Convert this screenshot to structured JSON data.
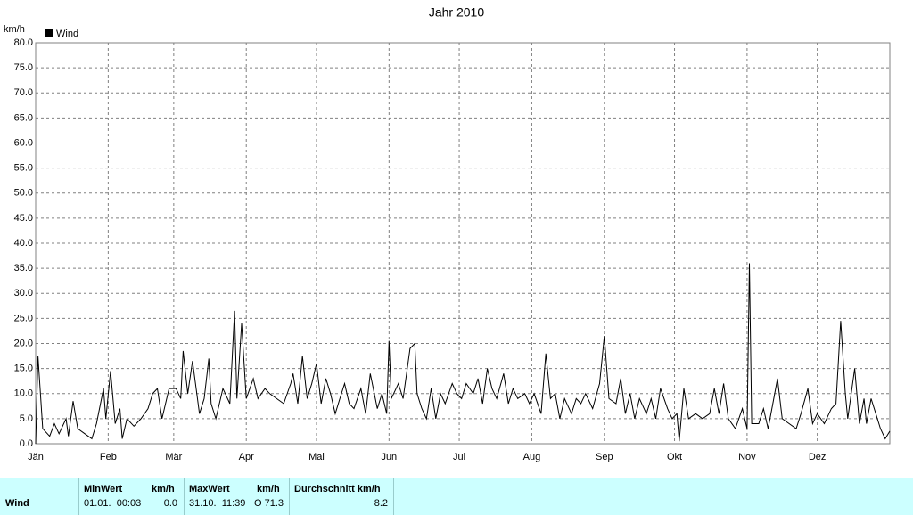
{
  "chart_data": {
    "type": "line",
    "title": "Jahr 2010",
    "y_label": "km/h",
    "x": [
      0,
      1,
      3,
      6,
      8,
      10,
      13,
      14,
      16,
      18,
      21,
      24,
      26,
      29,
      30,
      32,
      34,
      36,
      37,
      39,
      42,
      45,
      48,
      50,
      52,
      54,
      57,
      60,
      62,
      63,
      65,
      67,
      70,
      72,
      74,
      75,
      77,
      80,
      83,
      85,
      86,
      88,
      90,
      93,
      95,
      98,
      100,
      103,
      106,
      109,
      110,
      112,
      114,
      116,
      118,
      120,
      122,
      124,
      126,
      128,
      130,
      132,
      134,
      136,
      139,
      141,
      143,
      146,
      148,
      150,
      151,
      152,
      155,
      157,
      160,
      162,
      163,
      165,
      167,
      169,
      171,
      173,
      175,
      178,
      180,
      182,
      184,
      187,
      189,
      191,
      193,
      195,
      197,
      200,
      202,
      204,
      206,
      209,
      211,
      213,
      216,
      218,
      220,
      222,
      224,
      226,
      229,
      231,
      233,
      235,
      238,
      241,
      243,
      245,
      248,
      250,
      252,
      254,
      256,
      258,
      261,
      263,
      265,
      267,
      270,
      272,
      274,
      275,
      277,
      279,
      282,
      285,
      288,
      290,
      292,
      294,
      296,
      299,
      302,
      304,
      305,
      306,
      309,
      311,
      313,
      315,
      317,
      319,
      322,
      325,
      327,
      330,
      332,
      334,
      337,
      340,
      342,
      344,
      346,
      347,
      350,
      352,
      354,
      355,
      357,
      359,
      361,
      363,
      365
    ],
    "series": [
      {
        "name": "Wind",
        "color": "#000000",
        "values": [
          0,
          17.5,
          3,
          1.5,
          4,
          2,
          5,
          1.5,
          8.5,
          3,
          2,
          1,
          4,
          11,
          5,
          14.5,
          4,
          7,
          1,
          5,
          3.5,
          5,
          7,
          10,
          11,
          5,
          11,
          11,
          9,
          18.5,
          10,
          16.5,
          6,
          9,
          17,
          8,
          5,
          11,
          8,
          26.5,
          9,
          24,
          9,
          13,
          9,
          11,
          10,
          9,
          8,
          12,
          14,
          8,
          17.5,
          9,
          12,
          16,
          8,
          13,
          10,
          6,
          9,
          12,
          8,
          7,
          11,
          6,
          14,
          7,
          10,
          6,
          20.5,
          9,
          12,
          9,
          19,
          20,
          10,
          7,
          5,
          11,
          5,
          10,
          8,
          12,
          10,
          9,
          12,
          10,
          13,
          8,
          15,
          11,
          9,
          14,
          8,
          11,
          9,
          10,
          8,
          10,
          6,
          18,
          9,
          10,
          5,
          9,
          6,
          9,
          8,
          10,
          7,
          12,
          21.5,
          9,
          8,
          13,
          6,
          10,
          5,
          9,
          6,
          9,
          5,
          11,
          7,
          5,
          6,
          0.5,
          11,
          5,
          6,
          5,
          6,
          11,
          6,
          12,
          5,
          3,
          7,
          3,
          36,
          4,
          4,
          7,
          3,
          8,
          13,
          5,
          4,
          3,
          6,
          11,
          4,
          6,
          4,
          7,
          8,
          24.5,
          10,
          5,
          15,
          4,
          9,
          4,
          9,
          6,
          3,
          1,
          2.5
        ]
      }
    ],
    "xlim": [
      0,
      365
    ],
    "xticks": [
      {
        "value": 0,
        "label": "Jän"
      },
      {
        "value": 31,
        "label": "Feb"
      },
      {
        "value": 59,
        "label": "Mär"
      },
      {
        "value": 90,
        "label": "Apr"
      },
      {
        "value": 120,
        "label": "Mai"
      },
      {
        "value": 151,
        "label": "Jun"
      },
      {
        "value": 181,
        "label": "Jul"
      },
      {
        "value": 212,
        "label": "Aug"
      },
      {
        "value": 243,
        "label": "Sep"
      },
      {
        "value": 273,
        "label": "Okt"
      },
      {
        "value": 304,
        "label": "Nov"
      },
      {
        "value": 334,
        "label": "Dez"
      }
    ],
    "ylim": [
      0,
      80
    ],
    "yticks": [
      {
        "value": 0,
        "label": "0.0"
      },
      {
        "value": 5,
        "label": "5.0"
      },
      {
        "value": 10,
        "label": "10.0"
      },
      {
        "value": 15,
        "label": "15.0"
      },
      {
        "value": 20,
        "label": "20.0"
      },
      {
        "value": 25,
        "label": "25.0"
      },
      {
        "value": 30,
        "label": "30.0"
      },
      {
        "value": 35,
        "label": "35.0"
      },
      {
        "value": 40,
        "label": "40.0"
      },
      {
        "value": 45,
        "label": "45.0"
      },
      {
        "value": 50,
        "label": "50.0"
      },
      {
        "value": 55,
        "label": "55.0"
      },
      {
        "value": 60,
        "label": "60.0"
      },
      {
        "value": 65,
        "label": "65.0"
      },
      {
        "value": 70,
        "label": "70.0"
      },
      {
        "value": 75,
        "label": "75.0"
      },
      {
        "value": 80,
        "label": "80.0"
      }
    ],
    "grid": true
  },
  "table": {
    "row_label": "Wind",
    "min": {
      "header": "MinWert",
      "unit": "km/h",
      "date": "01.01.  00:03",
      "value": "0.0"
    },
    "max": {
      "header": "MaxWert",
      "unit": "km/h",
      "date": "31.10.  11:39",
      "value": "O 71.3"
    },
    "avg": {
      "header": "Durchschnitt km/h",
      "value": "8.2"
    }
  }
}
